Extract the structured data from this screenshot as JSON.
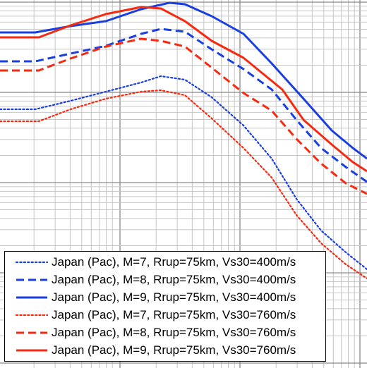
{
  "chart_data": {
    "type": "line",
    "title": "",
    "xlabel": "",
    "ylabel": "",
    "x_scale": "log",
    "y_scale": "log",
    "grid": true,
    "legend_placement": "bottom-left",
    "colors": {
      "blue": "#1a3fe0",
      "red": "#f52a10"
    },
    "series": [
      {
        "name": "Japan (Pac), M=7, Rrup=75km, Vs30=400m/s",
        "color": "#1a3fe0",
        "dash": "dotted",
        "width": 2.2,
        "points": [
          [
            0,
            155
          ],
          [
            50,
            155
          ],
          [
            100,
            143
          ],
          [
            150,
            130
          ],
          [
            200,
            117
          ],
          [
            228,
            108
          ],
          [
            262,
            113
          ],
          [
            300,
            138
          ],
          [
            345,
            178
          ],
          [
            385,
            225
          ],
          [
            420,
            282
          ],
          [
            455,
            327
          ],
          [
            490,
            358
          ],
          [
            520,
            382
          ]
        ]
      },
      {
        "name": "Japan (Pac), M=8, Rrup=75km, Vs30=400m/s",
        "color": "#1a3fe0",
        "dash": "dashed",
        "width": 3,
        "points": [
          [
            0,
            87
          ],
          [
            50,
            87
          ],
          [
            100,
            76
          ],
          [
            150,
            65
          ],
          [
            200,
            48
          ],
          [
            228,
            41
          ],
          [
            262,
            45
          ],
          [
            300,
            70
          ],
          [
            345,
            98
          ],
          [
            385,
            127
          ],
          [
            420,
            170
          ],
          [
            455,
            210
          ],
          [
            490,
            237
          ],
          [
            520,
            258
          ]
        ]
      },
      {
        "name": "Japan (Pac), M=9, Rrup=75km, Vs30=400m/s",
        "color": "#1a3fe0",
        "dash": "solid",
        "width": 3,
        "points": [
          [
            0,
            46
          ],
          [
            50,
            46
          ],
          [
            100,
            37
          ],
          [
            150,
            30
          ],
          [
            200,
            13
          ],
          [
            240,
            4
          ],
          [
            262,
            6
          ],
          [
            300,
            23
          ],
          [
            345,
            48
          ],
          [
            385,
            90
          ],
          [
            430,
            140
          ],
          [
            470,
            185
          ],
          [
            500,
            210
          ],
          [
            520,
            225
          ]
        ]
      },
      {
        "name": "Japan (Pac), M=7, Rrup=75km, Vs30=760m/s",
        "color": "#f52a10",
        "dash": "dotted",
        "width": 2.2,
        "points": [
          [
            0,
            172
          ],
          [
            55,
            172
          ],
          [
            100,
            155
          ],
          [
            150,
            140
          ],
          [
            200,
            130
          ],
          [
            228,
            128
          ],
          [
            262,
            135
          ],
          [
            300,
            168
          ],
          [
            345,
            210
          ],
          [
            385,
            252
          ],
          [
            420,
            305
          ],
          [
            455,
            345
          ],
          [
            490,
            375
          ],
          [
            520,
            395
          ]
        ]
      },
      {
        "name": "Japan (Pac), M=8, Rrup=75km, Vs30=760m/s",
        "color": "#f52a10",
        "dash": "dashed",
        "width": 3,
        "points": [
          [
            0,
            100
          ],
          [
            55,
            100
          ],
          [
            100,
            83
          ],
          [
            150,
            66
          ],
          [
            200,
            55
          ],
          [
            228,
            58
          ],
          [
            262,
            66
          ],
          [
            300,
            96
          ],
          [
            345,
            132
          ],
          [
            385,
            157
          ],
          [
            420,
            197
          ],
          [
            455,
            232
          ],
          [
            490,
            260
          ],
          [
            520,
            275
          ]
        ]
      },
      {
        "name": "Japan (Pac), M=9, Rrup=75km, Vs30=760m/s",
        "color": "#f52a10",
        "dash": "solid",
        "width": 3,
        "points": [
          [
            0,
            53
          ],
          [
            55,
            53
          ],
          [
            100,
            36
          ],
          [
            150,
            20
          ],
          [
            200,
            10
          ],
          [
            228,
            12
          ],
          [
            262,
            30
          ],
          [
            300,
            58
          ],
          [
            345,
            82
          ],
          [
            400,
            127
          ],
          [
            430,
            170
          ],
          [
            470,
            205
          ],
          [
            500,
            230
          ],
          [
            520,
            243
          ]
        ]
      }
    ]
  }
}
